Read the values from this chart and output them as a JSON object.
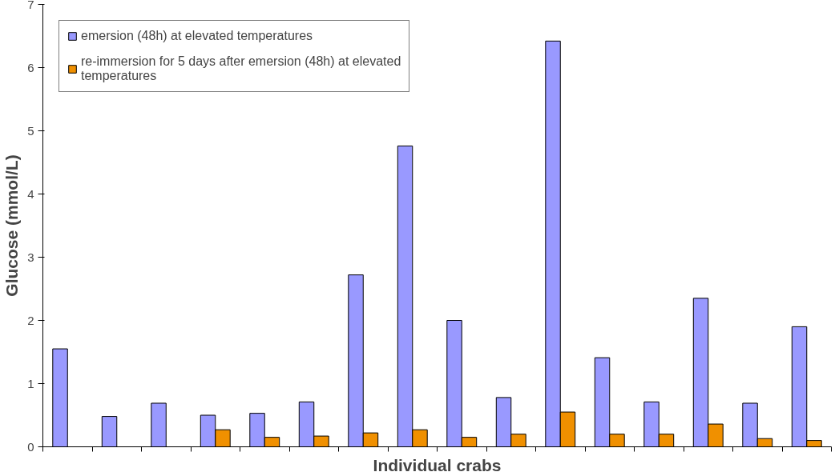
{
  "chart_data": {
    "type": "bar",
    "xlabel": "Individual crabs",
    "ylabel": "Glucose (mmol/L)",
    "categories": [
      null,
      null,
      null,
      null,
      null,
      null,
      null,
      null,
      null,
      null,
      null,
      null,
      null,
      null,
      null,
      null
    ],
    "series": [
      {
        "name": "emersion (48h) at elevated temperatures",
        "color": "#9999ff",
        "values": [
          1.55,
          0.48,
          0.69,
          0.5,
          0.53,
          0.71,
          2.72,
          4.76,
          2.0,
          0.78,
          6.42,
          1.41,
          0.71,
          2.35,
          0.69,
          1.9
        ]
      },
      {
        "name": "re-immersion for 5 days after emersion (48h) at elevated temperatures",
        "color": "#f09000",
        "values": [
          null,
          null,
          null,
          0.27,
          0.15,
          0.17,
          0.22,
          0.27,
          0.15,
          0.2,
          0.55,
          0.2,
          0.2,
          0.36,
          0.13,
          0.1
        ]
      }
    ],
    "ylim": [
      0,
      7
    ],
    "yticks": [
      0,
      1,
      2,
      3,
      4,
      5,
      6,
      7
    ],
    "grid": false,
    "legend": "top left"
  }
}
